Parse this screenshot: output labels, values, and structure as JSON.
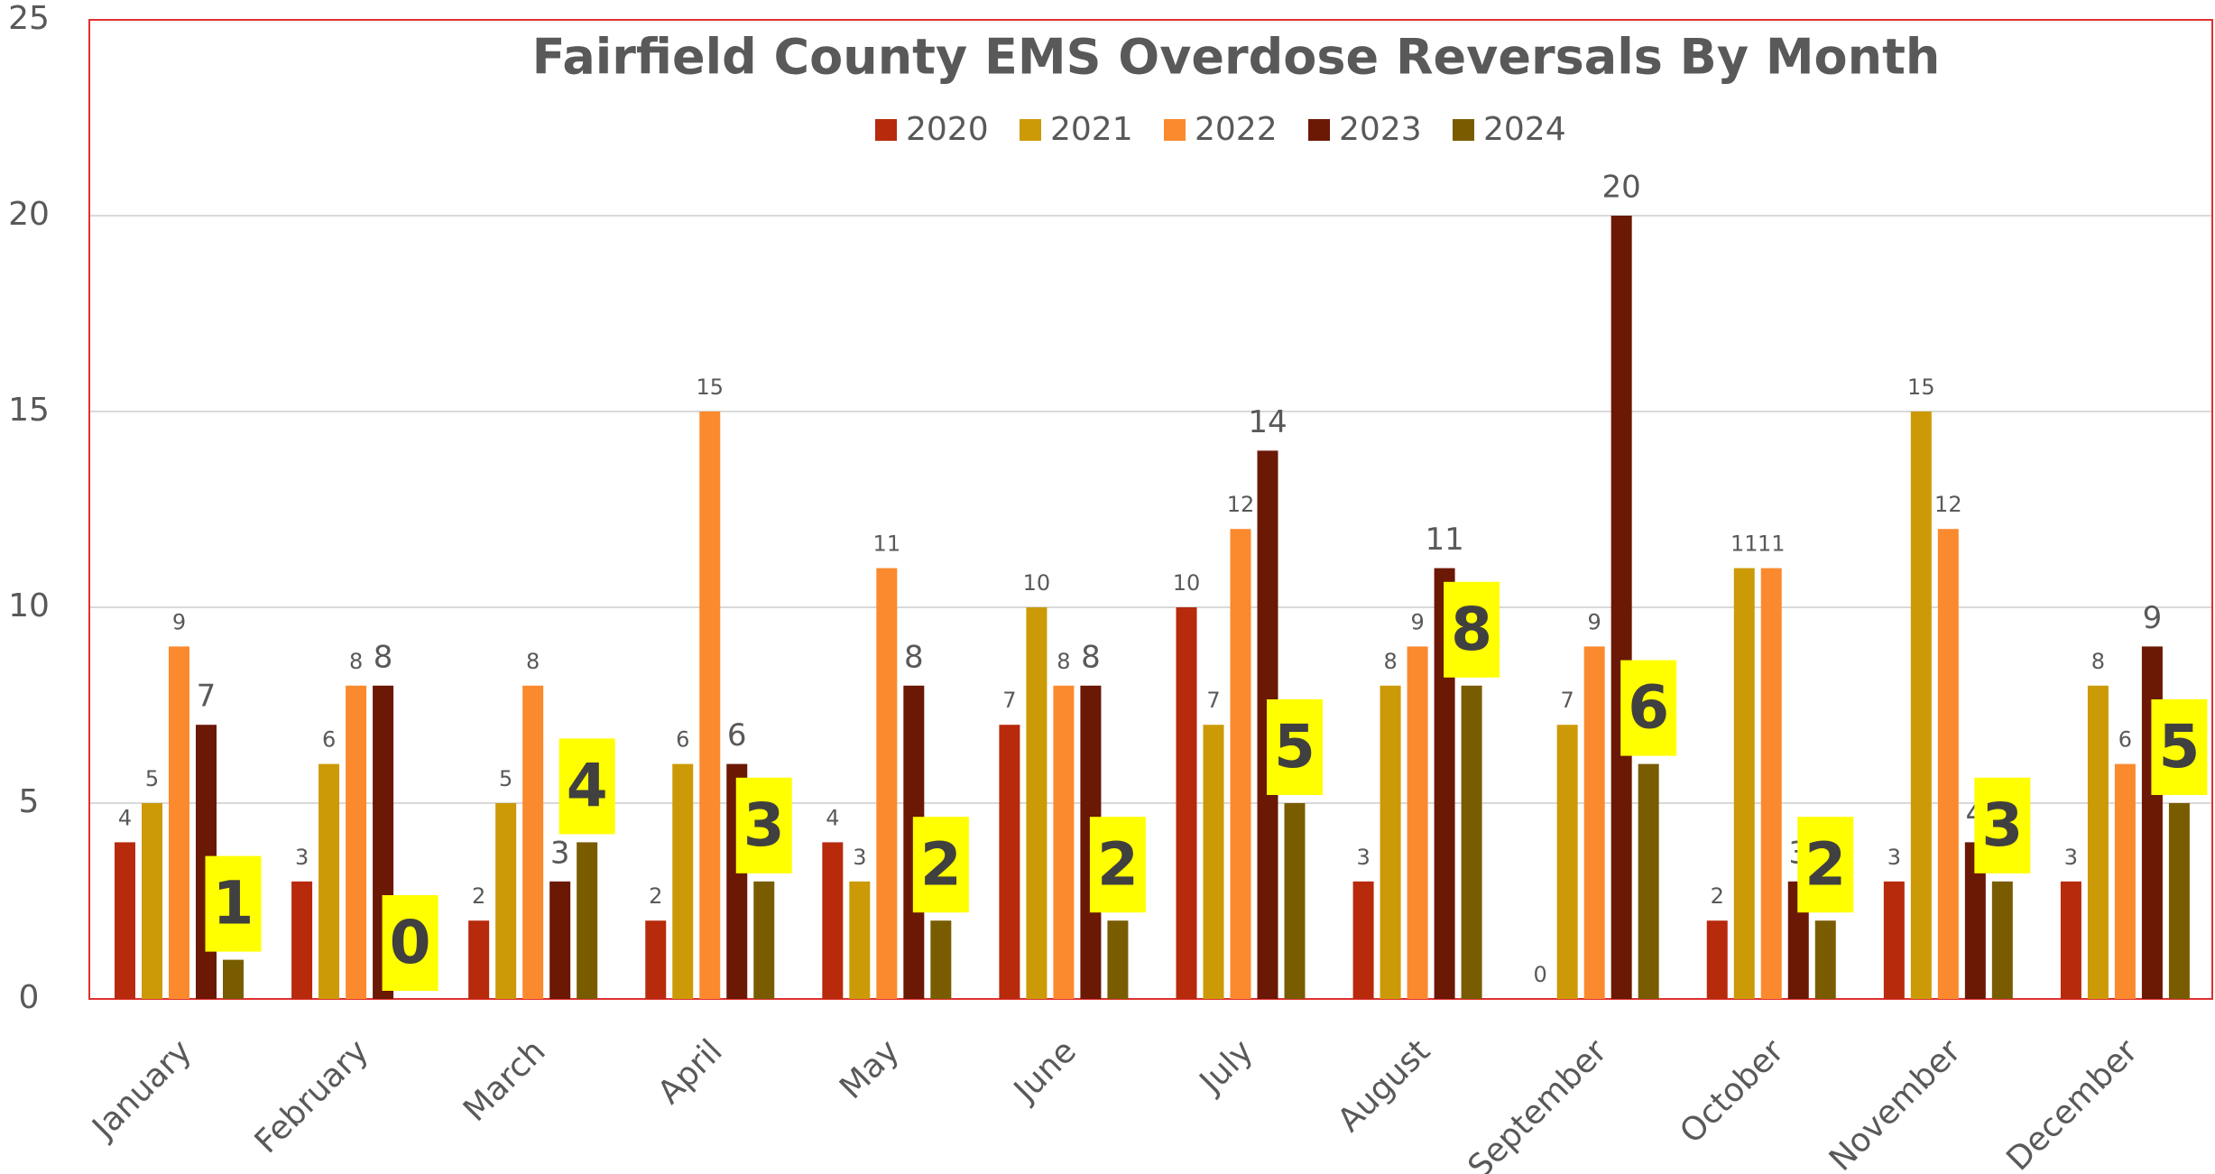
{
  "chart_data": {
    "type": "bar",
    "title": "Fairfield County EMS Overdose Reversals By Month",
    "categories": [
      "January",
      "February",
      "March",
      "April",
      "May",
      "June",
      "July",
      "August",
      "September",
      "October",
      "November",
      "December"
    ],
    "series": [
      {
        "name": "2020",
        "color": "#b72a0c",
        "values": [
          4,
          3,
          2,
          2,
          4,
          7,
          10,
          3,
          0,
          2,
          3,
          3
        ]
      },
      {
        "name": "2021",
        "color": "#cc9a06",
        "values": [
          5,
          6,
          5,
          6,
          3,
          10,
          7,
          8,
          7,
          11,
          15,
          8
        ]
      },
      {
        "name": "2022",
        "color": "#fb8a2e",
        "values": [
          9,
          8,
          8,
          15,
          11,
          8,
          12,
          9,
          9,
          11,
          12,
          6
        ]
      },
      {
        "name": "2023",
        "color": "#6b1805",
        "values": [
          7,
          8,
          3,
          6,
          8,
          8,
          14,
          11,
          20,
          3,
          4,
          9
        ]
      },
      {
        "name": "2024",
        "color": "#7a5c00",
        "values": [
          1,
          0,
          4,
          3,
          2,
          2,
          5,
          8,
          6,
          2,
          3,
          5
        ]
      }
    ],
    "ylim": [
      0,
      25
    ],
    "yticks": [
      0,
      5,
      10,
      15,
      20,
      25
    ],
    "grid": true,
    "legend": "top"
  }
}
